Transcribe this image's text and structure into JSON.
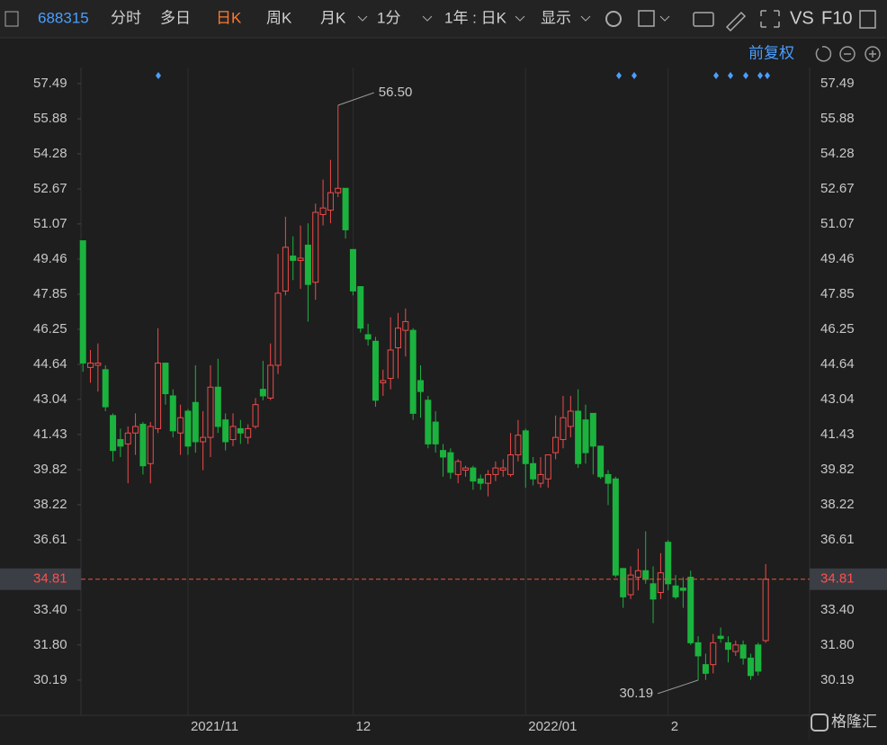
{
  "toolbar": {
    "code": "688315",
    "tabs": [
      "分时",
      "多日",
      "日K",
      "周K",
      "月K",
      "1分"
    ],
    "range": "1年 : 日K",
    "display": "显示",
    "vs": "VS",
    "f10": "F10"
  },
  "adjust": "前复权",
  "watermark": "格隆汇",
  "chart_data": {
    "type": "candlestick",
    "up_color": "#f04a4a",
    "down_color": "#1bb33e",
    "categories": [
      null,
      null,
      null,
      null,
      null,
      null,
      null,
      null,
      null,
      null,
      null,
      null,
      null,
      null,
      "2021/11",
      null,
      null,
      null,
      null,
      null,
      null,
      null,
      null,
      null,
      null,
      null,
      null,
      null,
      null,
      null,
      null,
      null,
      null,
      null,
      null,
      null,
      "12",
      null,
      null,
      null,
      null,
      null,
      null,
      null,
      null,
      null,
      null,
      null,
      null,
      null,
      null,
      null,
      null,
      null,
      null,
      null,
      null,
      null,
      null,
      "2022/01",
      null,
      null,
      null,
      null,
      null,
      null,
      null,
      null,
      null,
      null,
      null,
      null,
      null,
      null,
      null,
      null,
      null,
      null,
      "2",
      null,
      null,
      null,
      null,
      null,
      null,
      null,
      null,
      null,
      null,
      null,
      null,
      null
    ],
    "open": [
      50.3,
      44.5,
      44.6,
      44.4,
      42.3,
      41.2,
      41.0,
      41.5,
      41.9,
      40.1,
      41.7,
      44.7,
      43.2,
      41.5,
      42.5,
      42.9,
      41.1,
      41.3,
      43.6,
      42.1,
      41.2,
      41.7,
      41.3,
      41.8,
      43.5,
      43.1,
      44.6,
      48.0,
      49.6,
      49.4,
      50.1,
      48.4,
      51.5,
      51.7,
      52.5,
      52.7,
      49.9,
      48.2,
      46.0,
      45.7,
      43.8,
      44.0,
      45.4,
      46.2,
      46.2,
      43.9,
      43.0,
      42.0,
      40.7,
      40.6,
      39.6,
      39.8,
      39.9,
      39.4,
      39.2,
      39.6,
      39.8,
      39.6,
      40.5,
      41.6,
      40.1,
      39.2,
      39.4,
      40.6,
      41.2,
      41.8,
      42.5,
      42.1,
      42.4,
      40.9,
      39.6,
      39.4,
      35.3,
      34.1,
      34.9,
      35.2,
      34.6,
      34.2,
      36.5,
      34.5,
      34.4,
      34.9,
      31.9,
      30.9,
      30.9,
      32.2,
      31.9,
      31.5,
      31.8,
      31.2,
      31.8,
      32.0
    ],
    "high": [
      50.3,
      45.3,
      45.6,
      44.6,
      42.4,
      41.7,
      41.8,
      42.4,
      42.0,
      42.0,
      46.3,
      44.7,
      43.5,
      42.8,
      42.6,
      44.6,
      42.5,
      44.6,
      44.9,
      42.4,
      42.4,
      42.1,
      41.9,
      43.1,
      44.8,
      45.6,
      49.7,
      51.4,
      50.5,
      51.0,
      51.1,
      52.0,
      53.1,
      54.0,
      56.5,
      52.7,
      49.9,
      48.2,
      46.5,
      45.9,
      44.4,
      46.8,
      47.0,
      47.2,
      46.3,
      44.6,
      43.2,
      42.5,
      41.0,
      40.8,
      40.3,
      40.0,
      40.0,
      39.6,
      39.8,
      40.2,
      40.3,
      41.5,
      42.1,
      41.7,
      40.4,
      40.4,
      40.5,
      42.3,
      43.2,
      43.2,
      43.5,
      42.8,
      42.4,
      40.9,
      39.8,
      39.5,
      35.3,
      35.4,
      36.2,
      37.0,
      35.4,
      36.0,
      36.6,
      35.0,
      34.9,
      35.2,
      32.2,
      31.4,
      32.3,
      32.6,
      32.2,
      32.0,
      32.0,
      31.4,
      31.9,
      35.5
    ],
    "low": [
      44.3,
      43.8,
      43.4,
      42.5,
      40.2,
      40.4,
      39.2,
      40.5,
      39.6,
      39.2,
      41.5,
      42.8,
      41.3,
      40.5,
      40.5,
      40.6,
      39.8,
      40.4,
      41.5,
      40.7,
      40.9,
      41.0,
      41.0,
      41.7,
      43.0,
      43.0,
      44.2,
      47.8,
      48.5,
      48.1,
      46.6,
      47.6,
      51.0,
      51.1,
      52.3,
      50.4,
      47.8,
      46.1,
      45.5,
      42.7,
      43.2,
      43.5,
      44.0,
      45.0,
      42.1,
      42.2,
      40.8,
      40.6,
      39.5,
      39.4,
      39.2,
      39.5,
      38.9,
      38.9,
      38.6,
      39.3,
      39.5,
      39.5,
      40.2,
      39.0,
      39.1,
      39.0,
      39.0,
      40.3,
      40.8,
      41.3,
      39.9,
      40.1,
      39.6,
      39.4,
      38.2,
      34.9,
      33.5,
      33.9,
      34.3,
      34.6,
      32.8,
      33.9,
      34.3,
      33.9,
      33.5,
      31.8,
      30.19,
      30.2,
      30.5,
      31.9,
      31.0,
      31.3,
      30.9,
      30.2,
      30.4,
      31.9
    ],
    "close": [
      44.7,
      44.7,
      44.7,
      42.7,
      40.7,
      40.9,
      41.5,
      41.8,
      40.0,
      41.8,
      44.7,
      43.3,
      41.6,
      42.2,
      40.9,
      41.1,
      41.3,
      43.6,
      41.8,
      41.1,
      41.8,
      41.5,
      41.7,
      42.8,
      43.2,
      44.6,
      47.9,
      50.0,
      49.4,
      49.5,
      48.3,
      51.6,
      51.8,
      52.5,
      52.7,
      50.8,
      48.0,
      46.3,
      45.8,
      43.0,
      43.9,
      45.3,
      46.3,
      46.6,
      42.4,
      43.4,
      41.0,
      41.0,
      40.4,
      39.7,
      40.2,
      39.9,
      39.3,
      39.2,
      39.6,
      39.9,
      39.9,
      40.5,
      41.4,
      40.1,
      39.4,
      39.6,
      40.5,
      41.3,
      42.2,
      42.5,
      40.1,
      40.6,
      40.9,
      39.5,
      39.2,
      35.0,
      34.0,
      35.0,
      35.2,
      34.8,
      33.9,
      35.1,
      34.6,
      34.0,
      34.3,
      31.9,
      31.3,
      30.5,
      31.9,
      32.1,
      31.6,
      31.8,
      31.2,
      30.4,
      30.6,
      34.81
    ],
    "high_label": "56.50",
    "low_label": "30.19",
    "ylim": [
      28.58,
      58.23
    ],
    "yticks": [
      30.19,
      {
        "value": 31.8,
        "label": "31.80"
      },
      {
        "value": 33.4,
        "label": "33.40"
      },
      36.61,
      38.22,
      39.82,
      41.43,
      43.04,
      44.64,
      46.25,
      47.85,
      49.46,
      51.07,
      52.67,
      54.28,
      55.88,
      57.49
    ],
    "grid": "x"
  }
}
